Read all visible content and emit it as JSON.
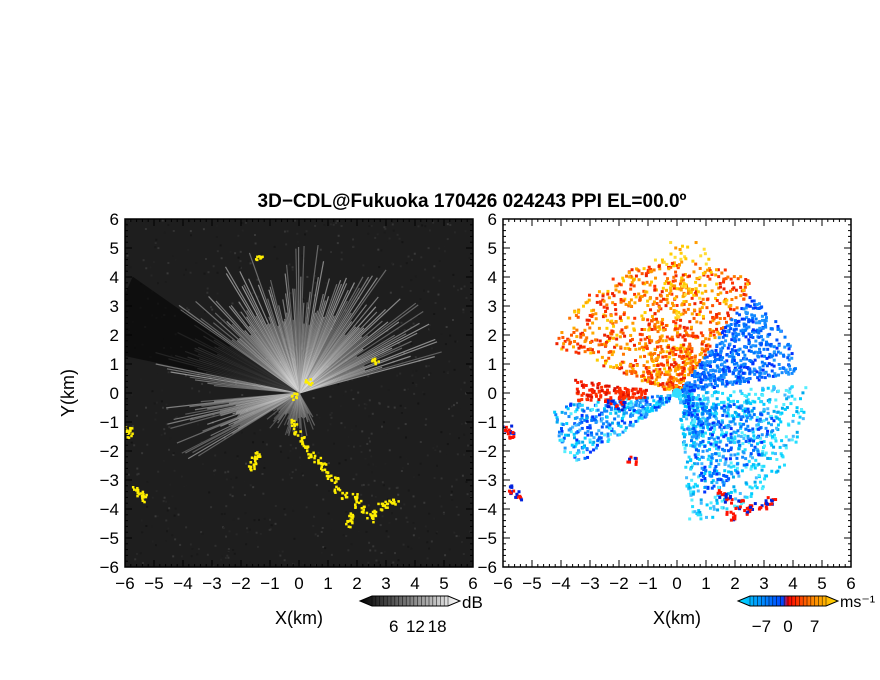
{
  "title": "3D−CDL@Fukuoka 170426 024243 PPI EL=00.0º",
  "chart_data": [
    {
      "type": "heatmap",
      "panel": "left",
      "xlabel": "X(km)",
      "ylabel": "Y(km)",
      "xlim": [
        -6,
        6
      ],
      "ylim": [
        -6,
        6
      ],
      "xticks": [
        "−6",
        "−5",
        "−4",
        "−3",
        "−2",
        "−1",
        "0",
        "1",
        "2",
        "3",
        "4",
        "5",
        "6"
      ],
      "yticks": [
        "6",
        "5",
        "4",
        "3",
        "2",
        "1",
        "0",
        "−1",
        "−2",
        "−3",
        "−4",
        "−5",
        "−6"
      ],
      "colorbar": {
        "label": "dB",
        "ticks": [
          "6",
          "12",
          "18"
        ],
        "range": [
          0,
          21
        ],
        "colors": [
          "#000000",
          "#ffffff"
        ]
      },
      "highlight_color": "#ffee00",
      "description_sectors_deg": [
        [
          15,
          175
        ],
        [
          185,
          210
        ]
      ]
    },
    {
      "type": "heatmap",
      "panel": "right",
      "xlabel": "X(km)",
      "ylabel": "",
      "xlim": [
        -6,
        6
      ],
      "ylim": [
        -6,
        6
      ],
      "xticks": [
        "−6",
        "−5",
        "−4",
        "−3",
        "−2",
        "−1",
        "0",
        "1",
        "2",
        "3",
        "4",
        "5",
        "6"
      ],
      "yticks": [
        "6",
        "5",
        "4",
        "3",
        "2",
        "1",
        "0",
        "−1",
        "−2",
        "−3",
        "−4",
        "−5",
        "−6"
      ],
      "colorbar": {
        "label": "ms⁻¹",
        "ticks": [
          "−7",
          "0",
          "7"
        ],
        "range": [
          -10,
          10
        ],
        "colors": [
          "#00e0ff",
          "#0044ff",
          "#ff0000",
          "#ff8800",
          "#ffdd00"
        ]
      }
    }
  ]
}
